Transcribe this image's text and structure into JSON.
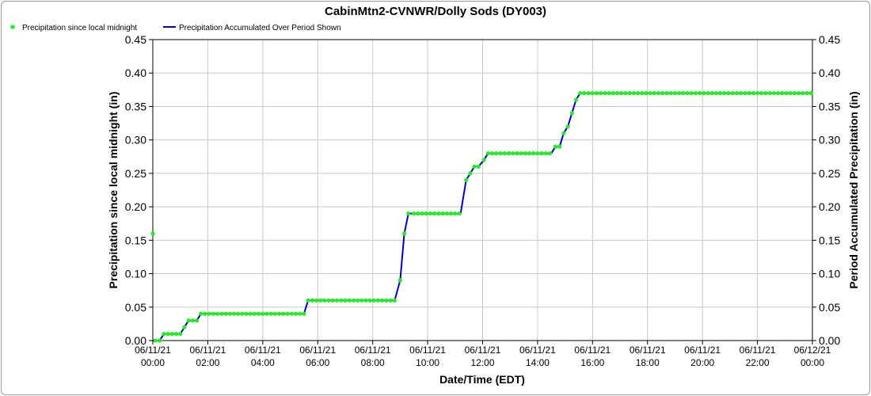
{
  "chart_data": {
    "type": "line",
    "title": "CabinMtn2-CVNWR/Dolly Sods (DY003)",
    "xlabel": "Date/Time (EDT)",
    "ylabel_left": "Precipitation since local midnight (in)",
    "ylabel_right": "Period Accumulated Precipitation (in)",
    "ylim": [
      0,
      0.45
    ],
    "xlim_hours": [
      0,
      24
    ],
    "y_ticks": [
      "0.00",
      "0.05",
      "0.10",
      "0.15",
      "0.20",
      "0.25",
      "0.30",
      "0.35",
      "0.40",
      "0.45"
    ],
    "y_tick_values": [
      0,
      0.05,
      0.1,
      0.15,
      0.2,
      0.25,
      0.3,
      0.35,
      0.4,
      0.45
    ],
    "x_ticks": [
      {
        "date": "06/11/21",
        "time": "00:00",
        "hour": 0
      },
      {
        "date": "06/11/21",
        "time": "02:00",
        "hour": 2
      },
      {
        "date": "06/11/21",
        "time": "04:00",
        "hour": 4
      },
      {
        "date": "06/11/21",
        "time": "06:00",
        "hour": 6
      },
      {
        "date": "06/11/21",
        "time": "08:00",
        "hour": 8
      },
      {
        "date": "06/11/21",
        "time": "10:00",
        "hour": 10
      },
      {
        "date": "06/11/21",
        "time": "12:00",
        "hour": 12
      },
      {
        "date": "06/11/21",
        "time": "14:00",
        "hour": 14
      },
      {
        "date": "06/11/21",
        "time": "16:00",
        "hour": 16
      },
      {
        "date": "06/11/21",
        "time": "18:00",
        "hour": 18
      },
      {
        "date": "06/11/21",
        "time": "20:00",
        "hour": 20
      },
      {
        "date": "06/11/21",
        "time": "22:00",
        "hour": 22
      },
      {
        "date": "06/12/21",
        "time": "00:00",
        "hour": 24
      }
    ],
    "grid": true,
    "legend_placement": "top-left",
    "series": [
      {
        "name": "Precipitation since local midnight",
        "kind": "scatter",
        "color": "#22ee22",
        "points": [
          [
            0.0,
            0.16
          ],
          [
            0.1,
            0.0
          ],
          [
            0.25,
            0.0
          ],
          [
            0.4,
            0.01
          ],
          [
            0.55,
            0.01
          ],
          [
            0.7,
            0.01
          ],
          [
            0.85,
            0.01
          ],
          [
            1.0,
            0.01
          ],
          [
            1.15,
            0.02
          ],
          [
            1.3,
            0.03
          ],
          [
            1.45,
            0.03
          ],
          [
            1.6,
            0.03
          ],
          [
            1.75,
            0.04
          ],
          [
            1.9,
            0.04
          ]
        ],
        "flat_runs": [
          {
            "from": 1.9,
            "to": 5.5,
            "step": 0.15,
            "value": 0.04
          },
          {
            "from": 5.8,
            "to": 8.8,
            "step": 0.15,
            "value": 0.06
          },
          {
            "from": 9.5,
            "to": 11.2,
            "step": 0.15,
            "value": 0.19
          },
          {
            "from": 12.2,
            "to": 14.5,
            "step": 0.15,
            "value": 0.28
          },
          {
            "from": 15.7,
            "to": 24.0,
            "step": 0.15,
            "value": 0.37
          }
        ],
        "extra_points": [
          [
            5.65,
            0.06
          ],
          [
            9.0,
            0.09
          ],
          [
            9.15,
            0.16
          ],
          [
            9.3,
            0.19
          ],
          [
            11.4,
            0.24
          ],
          [
            11.55,
            0.25
          ],
          [
            11.7,
            0.26
          ],
          [
            11.85,
            0.26
          ],
          [
            12.05,
            0.27
          ],
          [
            14.65,
            0.29
          ],
          [
            14.8,
            0.29
          ],
          [
            14.95,
            0.31
          ],
          [
            15.1,
            0.32
          ],
          [
            15.25,
            0.34
          ],
          [
            15.4,
            0.36
          ],
          [
            15.55,
            0.37
          ]
        ]
      },
      {
        "name": "Precipitation Accumulated Over Period Shown",
        "kind": "line",
        "color": "#0000cc",
        "points": [
          [
            0.0,
            0.0
          ],
          [
            0.25,
            0.0
          ],
          [
            0.4,
            0.01
          ],
          [
            1.0,
            0.01
          ],
          [
            1.15,
            0.02
          ],
          [
            1.3,
            0.03
          ],
          [
            1.6,
            0.03
          ],
          [
            1.75,
            0.04
          ],
          [
            5.5,
            0.04
          ],
          [
            5.65,
            0.06
          ],
          [
            8.8,
            0.06
          ],
          [
            9.0,
            0.09
          ],
          [
            9.15,
            0.16
          ],
          [
            9.3,
            0.19
          ],
          [
            11.2,
            0.19
          ],
          [
            11.4,
            0.24
          ],
          [
            11.55,
            0.25
          ],
          [
            11.7,
            0.26
          ],
          [
            11.85,
            0.26
          ],
          [
            12.05,
            0.27
          ],
          [
            12.2,
            0.28
          ],
          [
            14.5,
            0.28
          ],
          [
            14.65,
            0.29
          ],
          [
            14.8,
            0.29
          ],
          [
            14.95,
            0.31
          ],
          [
            15.1,
            0.32
          ],
          [
            15.25,
            0.34
          ],
          [
            15.4,
            0.36
          ],
          [
            15.55,
            0.37
          ],
          [
            24.0,
            0.37
          ]
        ]
      }
    ]
  }
}
